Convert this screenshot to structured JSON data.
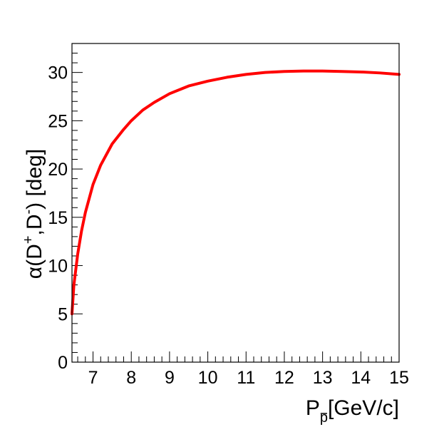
{
  "chart_data": {
    "type": "line",
    "title": "",
    "xlabel": {
      "base": "P",
      "subscript": "p",
      "rest": "[GeV/c]"
    },
    "ylabel": {
      "prefix": "α(D",
      "sup1": "+",
      "middle": ",D",
      "sup2": "-",
      "suffix": ") [deg]"
    },
    "xlim": [
      6.45,
      15
    ],
    "ylim": [
      0,
      33
    ],
    "x_ticks": [
      7,
      8,
      9,
      10,
      11,
      12,
      13,
      14,
      15
    ],
    "y_ticks": [
      0,
      5,
      10,
      15,
      20,
      25,
      30
    ],
    "x_minor_step": 0.2,
    "y_minor_step": 1,
    "grid": false,
    "legend": "none",
    "series": [
      {
        "color": "#ff0000",
        "x": [
          6.45,
          6.5,
          6.6,
          6.7,
          6.8,
          7.0,
          7.2,
          7.5,
          7.8,
          8.0,
          8.3,
          8.6,
          9.0,
          9.5,
          10.0,
          10.5,
          11.0,
          11.5,
          12.0,
          12.5,
          13.0,
          13.5,
          14.0,
          14.5,
          15.0
        ],
        "y": [
          5.0,
          8.0,
          11.2,
          13.6,
          15.5,
          18.4,
          20.4,
          22.6,
          24.1,
          25.0,
          26.1,
          26.9,
          27.8,
          28.6,
          29.1,
          29.5,
          29.8,
          30.0,
          30.1,
          30.15,
          30.15,
          30.1,
          30.05,
          29.95,
          29.8
        ]
      }
    ]
  }
}
